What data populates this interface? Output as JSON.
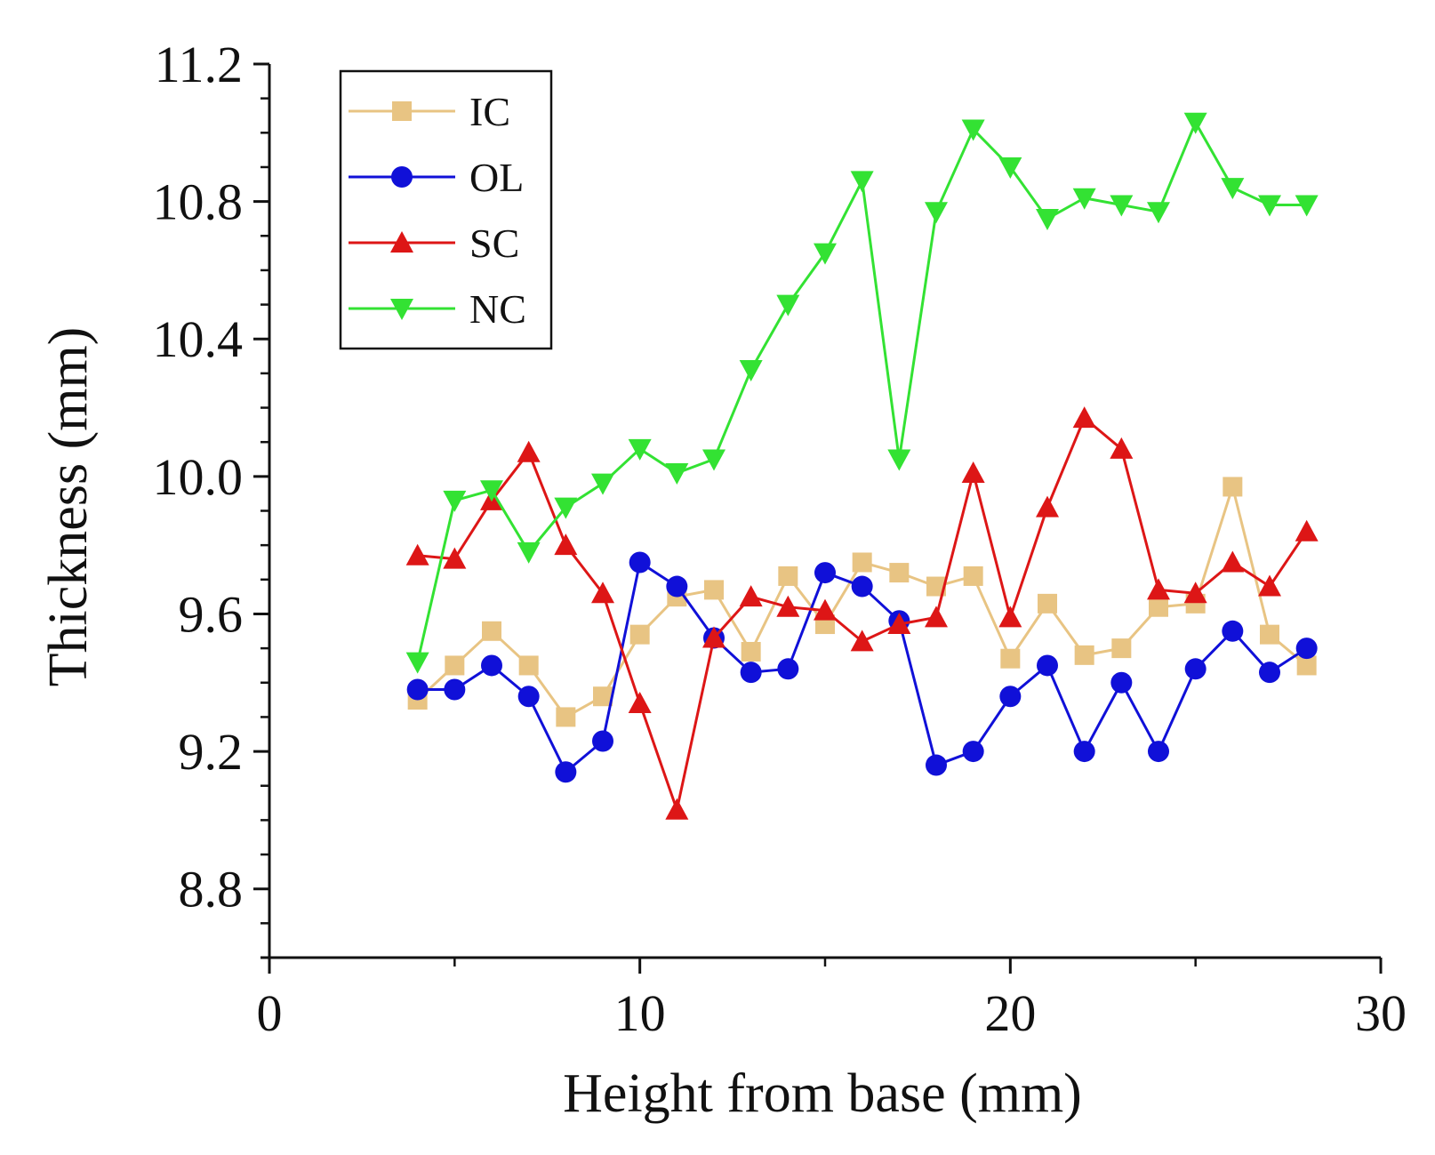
{
  "chart_data": {
    "type": "line",
    "title": "",
    "xlabel": "Height from base (mm)",
    "ylabel": "Thickness (mm)",
    "xlim": [
      0,
      30
    ],
    "ylim": [
      8.6,
      11.2
    ],
    "xticks": [
      0,
      10,
      20,
      30
    ],
    "xtick_labels": [
      "0",
      "10",
      "20",
      "30"
    ],
    "yticks": [
      8.8,
      9.2,
      9.6,
      10.0,
      10.4,
      10.8,
      11.2
    ],
    "ytick_labels": [
      "8.8",
      "9.2",
      "9.6",
      "10.0",
      "10.4",
      "10.8",
      "11.2"
    ],
    "grid": false,
    "legend_position": "top-left",
    "x": [
      4,
      5,
      6,
      7,
      8,
      9,
      10,
      11,
      12,
      13,
      14,
      15,
      16,
      17,
      18,
      19,
      20,
      21,
      22,
      23,
      24,
      25,
      26,
      27,
      28
    ],
    "series": [
      {
        "name": "IC",
        "color": "#e8c483",
        "marker": "square",
        "values": [
          9.35,
          9.45,
          9.55,
          9.45,
          9.3,
          9.36,
          9.54,
          9.65,
          9.67,
          9.49,
          9.71,
          9.57,
          9.75,
          9.72,
          9.68,
          9.71,
          9.47,
          9.63,
          9.48,
          9.5,
          9.62,
          9.63,
          9.97,
          9.54,
          9.45
        ]
      },
      {
        "name": "OL",
        "color": "#1010d8",
        "marker": "circle",
        "values": [
          9.38,
          9.38,
          9.45,
          9.36,
          9.14,
          9.23,
          9.75,
          9.68,
          9.53,
          9.43,
          9.44,
          9.72,
          9.68,
          9.58,
          9.16,
          9.2,
          9.36,
          9.45,
          9.2,
          9.4,
          9.2,
          9.44,
          9.55,
          9.43,
          9.5
        ]
      },
      {
        "name": "SC",
        "color": "#dd1616",
        "marker": "triangle-up",
        "values": [
          9.77,
          9.76,
          9.93,
          10.07,
          9.8,
          9.66,
          9.34,
          9.03,
          9.53,
          9.65,
          9.62,
          9.61,
          9.52,
          9.57,
          9.59,
          10.01,
          9.59,
          9.91,
          10.17,
          10.08,
          9.67,
          9.66,
          9.75,
          9.68,
          9.84
        ]
      },
      {
        "name": "NC",
        "color": "#33e233",
        "marker": "triangle-down",
        "values": [
          9.46,
          9.93,
          9.96,
          9.78,
          9.91,
          9.98,
          10.08,
          10.01,
          10.05,
          10.31,
          10.5,
          10.65,
          10.86,
          10.05,
          10.77,
          11.01,
          10.9,
          10.75,
          10.81,
          10.79,
          10.77,
          11.03,
          10.84,
          10.79,
          10.79
        ]
      }
    ]
  }
}
